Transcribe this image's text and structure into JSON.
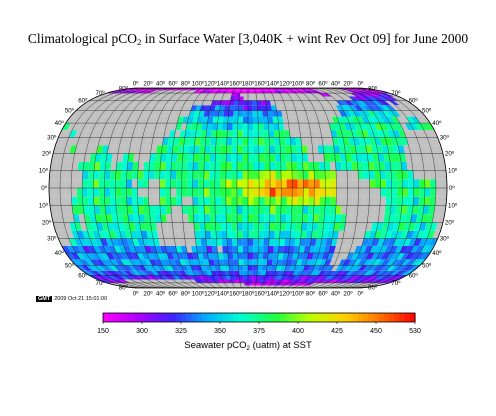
{
  "title": {
    "main": "Climatological pCO",
    "sub": "2",
    "rest": " in Surface Water [3,040K + wint Rev Oct 09] for June 2000"
  },
  "map": {
    "projection": "Eckert/Winkel-style global projection",
    "land_color": "#c0c0c0",
    "background": "#ffffff",
    "lon_labels": [
      "0º",
      "20º",
      "40º",
      "60º",
      "80º",
      "100º",
      "120º",
      "140º",
      "160º",
      "180º",
      "160º",
      "140º",
      "120º",
      "100º",
      "80º",
      "60º",
      "40º",
      "20º",
      "0º"
    ],
    "lat_labels_left": [
      "80º",
      "70º",
      "60º",
      "50º",
      "40º",
      "30º",
      "20º",
      "10º",
      "0º",
      "10º",
      "20º",
      "30º",
      "40º",
      "50º",
      "60º",
      "70º",
      "80º"
    ],
    "lat_labels_right": [
      "80º",
      "70º",
      "60º",
      "50º",
      "40º",
      "30º",
      "20º",
      "10º",
      "0º",
      "10º",
      "20º",
      "30º",
      "40º",
      "50º",
      "60º",
      "70º",
      "80º"
    ]
  },
  "stamp": {
    "badge": "GMT",
    "text": "2009 Oct 21 15:01:00"
  },
  "colorbar": {
    "min": 150,
    "max": 530,
    "ticks": [
      "150",
      "300",
      "325",
      "350",
      "375",
      "400",
      "425",
      "450",
      "530"
    ],
    "label_pre": "Seawater  pCO",
    "label_sub": "2",
    "label_post": " (uatm) at SST",
    "colors": [
      "#ff00ff",
      "#b000ff",
      "#4020ff",
      "#00b0ff",
      "#00ffd0",
      "#20ff40",
      "#c0ff00",
      "#ffd000",
      "#ff7000",
      "#ff0000"
    ]
  }
}
